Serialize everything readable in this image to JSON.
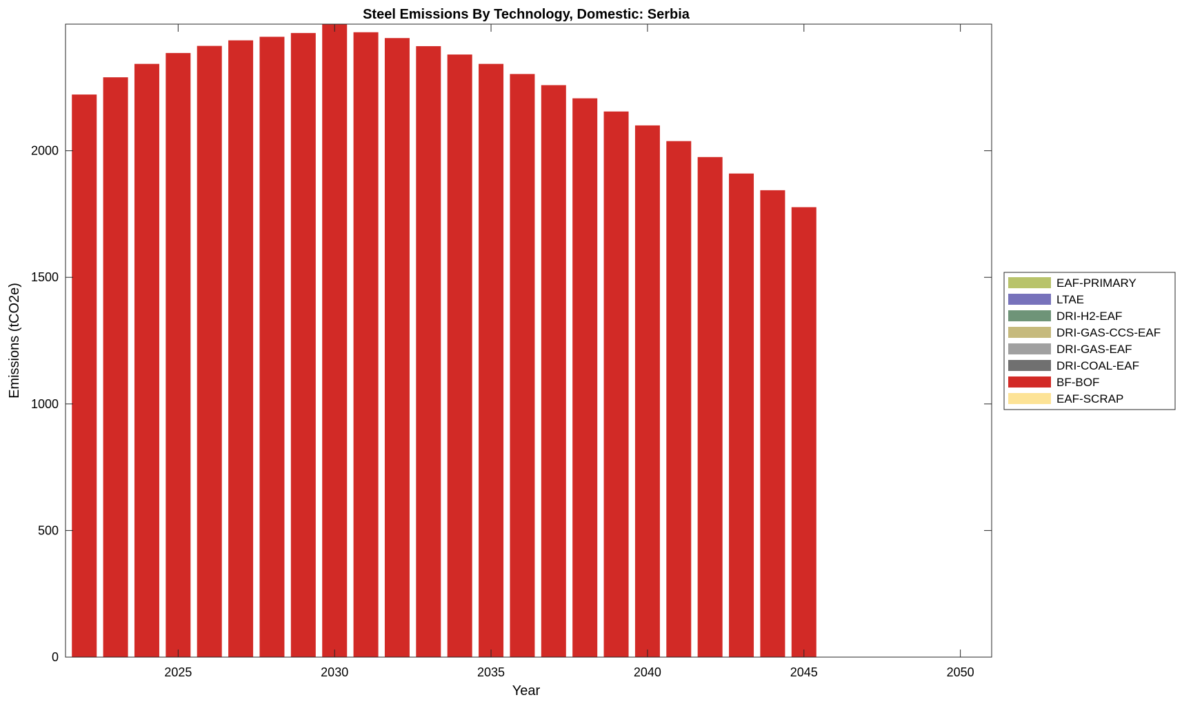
{
  "chart_data": {
    "type": "bar",
    "stacked": true,
    "title": "Steel Emissions By Technology, Domestic: Serbia",
    "xlabel": "Year",
    "ylabel": "Emissions (tCO2e)",
    "xlim": [
      2021.4,
      2051.0
    ],
    "ylim": [
      0,
      2500
    ],
    "xticks": [
      2025,
      2030,
      2035,
      2040,
      2045,
      2050
    ],
    "yticks": [
      0,
      500,
      1000,
      1500,
      2000
    ],
    "grid": false,
    "legend_position": "right",
    "categories": [
      2022,
      2023,
      2024,
      2025,
      2026,
      2027,
      2028,
      2029,
      2030,
      2031,
      2032,
      2033,
      2034,
      2035,
      2036,
      2037,
      2038,
      2039,
      2040,
      2041,
      2042,
      2043,
      2044,
      2045
    ],
    "series": [
      {
        "name": "EAF-PRIMARY",
        "color": "#b8c36b",
        "values": [
          0,
          0,
          0,
          0,
          0,
          0,
          0,
          0,
          0,
          0,
          0,
          0,
          0,
          0,
          0,
          0,
          0,
          0,
          0,
          0,
          0,
          0,
          0,
          0
        ]
      },
      {
        "name": "LTAE",
        "color": "#7772bb",
        "values": [
          0,
          0,
          0,
          0,
          0,
          0,
          0,
          0,
          0,
          0,
          0,
          0,
          0,
          0,
          0,
          0,
          0,
          0,
          0,
          0,
          0,
          0,
          0,
          0
        ]
      },
      {
        "name": "DRI-H2-EAF",
        "color": "#6e9478",
        "values": [
          0,
          0,
          0,
          0,
          0,
          0,
          0,
          0,
          0,
          0,
          0,
          0,
          0,
          0,
          0,
          0,
          0,
          0,
          0,
          0,
          0,
          0,
          0,
          0
        ]
      },
      {
        "name": "DRI-GAS-CCS-EAF",
        "color": "#c6ba7d",
        "values": [
          0,
          0,
          0,
          0,
          0,
          0,
          0,
          0,
          0,
          0,
          0,
          0,
          0,
          0,
          0,
          0,
          0,
          0,
          0,
          0,
          0,
          0,
          0,
          0
        ]
      },
      {
        "name": "DRI-GAS-EAF",
        "color": "#a0a0a0",
        "values": [
          0,
          0,
          0,
          0,
          0,
          0,
          0,
          0,
          0,
          0,
          0,
          0,
          0,
          0,
          0,
          0,
          0,
          0,
          0,
          0,
          0,
          0,
          0,
          0
        ]
      },
      {
        "name": "DRI-COAL-EAF",
        "color": "#707070",
        "values": [
          0,
          0,
          0,
          0,
          0,
          0,
          0,
          0,
          0,
          0,
          0,
          0,
          0,
          0,
          0,
          0,
          0,
          0,
          0,
          0,
          0,
          0,
          0,
          0
        ]
      },
      {
        "name": "BF-BOF",
        "color": "#d22a26",
        "values": [
          2222,
          2290,
          2343,
          2386,
          2414,
          2436,
          2450,
          2465,
          2500,
          2468,
          2445,
          2413,
          2380,
          2343,
          2303,
          2259,
          2207,
          2155,
          2100,
          2038,
          1975,
          1910,
          1844,
          1777
        ]
      },
      {
        "name": "EAF-SCRAP",
        "color": "#fde396",
        "values": [
          0,
          0,
          0,
          0,
          0,
          0,
          0,
          0,
          0,
          0,
          0,
          0,
          0,
          0,
          0,
          0,
          0,
          0,
          0,
          0,
          0,
          0,
          0,
          0
        ]
      }
    ]
  }
}
